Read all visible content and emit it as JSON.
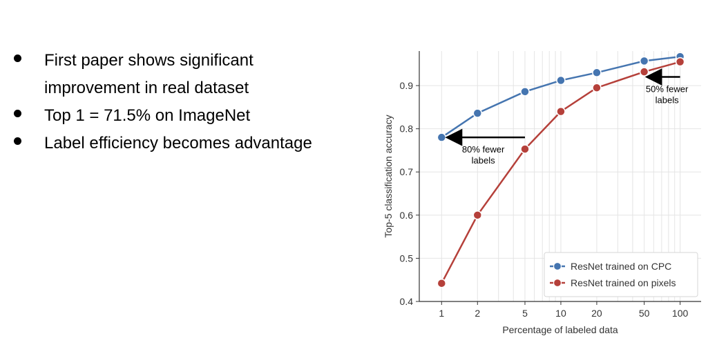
{
  "slide": {
    "bullets": [
      "First paper shows significant improvement in real dataset",
      "Top 1 = 71.5% on ImageNet",
      "Label efficiency becomes advantage"
    ]
  },
  "chart_data": {
    "type": "line",
    "xlabel": "Percentage of labeled data",
    "ylabel": "Top-5 classification accuracy",
    "x": [
      1,
      2,
      5,
      10,
      20,
      50,
      100
    ],
    "x_tick_labels": [
      "1",
      "2",
      "5",
      "10",
      "20",
      "50",
      "100"
    ],
    "x_scale": "log",
    "xlim": [
      0.65,
      150
    ],
    "ylim": [
      0.4,
      0.98
    ],
    "y_ticks": [
      0.4,
      0.5,
      0.6,
      0.7,
      0.8,
      0.9
    ],
    "y_tick_labels": [
      "0.4",
      "0.5",
      "0.6",
      "0.7",
      "0.8",
      "0.9"
    ],
    "grid": true,
    "legend_position": "bottom-right",
    "series": [
      {
        "name": "ResNet trained on CPC",
        "color": "#4575b0",
        "values": [
          0.78,
          0.836,
          0.886,
          0.912,
          0.93,
          0.957,
          0.967
        ]
      },
      {
        "name": "ResNet trained on pixels",
        "color": "#b5403a",
        "values": [
          0.442,
          0.6,
          0.753,
          0.84,
          0.895,
          0.932,
          0.955
        ]
      }
    ],
    "annotations": [
      {
        "text_lines": [
          "80% fewer",
          "labels"
        ],
        "arrow_from_x": 5,
        "arrow_to_x": 1,
        "y": 0.78
      },
      {
        "text_lines": [
          "50% fewer",
          "labels"
        ],
        "arrow_from_x": 100,
        "arrow_to_x": 50,
        "y": 0.92
      }
    ]
  }
}
